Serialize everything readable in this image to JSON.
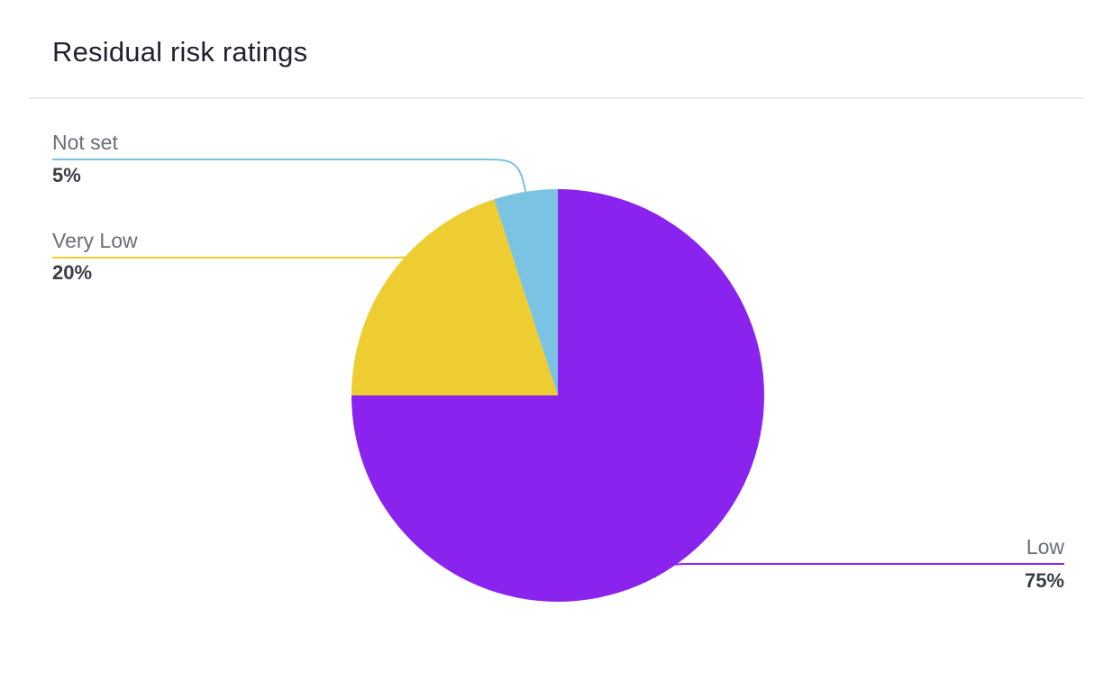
{
  "card": {
    "title": "Residual risk ratings"
  },
  "chart_data": {
    "type": "pie",
    "title": "Residual risk ratings",
    "slices": [
      {
        "name": "Low",
        "value": 75,
        "percent_label": "75%",
        "color": "#8a23ee"
      },
      {
        "name": "Very Low",
        "value": 20,
        "percent_label": "20%",
        "color": "#edcd31"
      },
      {
        "name": "Not set",
        "value": 5,
        "percent_label": "5%",
        "color": "#7ac3e3"
      }
    ],
    "start_angle": "12 o'clock",
    "direction": "clockwise",
    "labels": "outside with leader lines"
  }
}
